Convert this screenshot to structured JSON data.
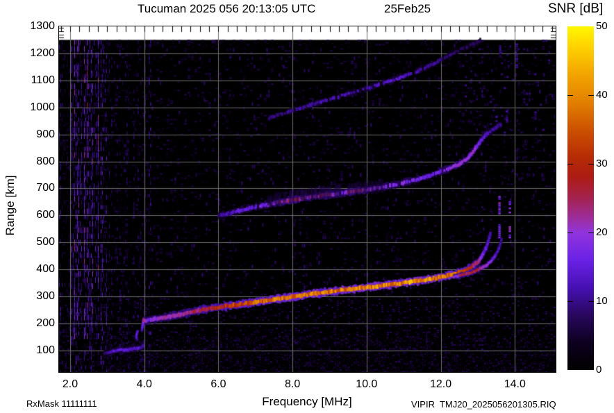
{
  "title": {
    "text": "Tucuman 2025 056 20:13:05 UTC",
    "date": "25Feb25"
  },
  "colorbar": {
    "label": "SNR [dB]",
    "min": 0,
    "max": 50,
    "tick_values": [
      10,
      20,
      30,
      40
    ],
    "tick_labels": [
      0,
      10,
      20,
      30,
      40,
      50
    ]
  },
  "axes": {
    "x": {
      "label": "Frequency [MHz]",
      "min": 1.7,
      "max": 15.1,
      "major_ticks": [
        2,
        4,
        6,
        8,
        10,
        12,
        14
      ],
      "major_tick_labels": [
        "2.0",
        "4.0",
        "6.0",
        "8.0",
        "10.0",
        "12.0",
        "14.0"
      ],
      "minor_tick_step": 0.25
    },
    "y": {
      "label": "Range [km]",
      "min": 20,
      "max": 1300,
      "major_ticks": [
        100,
        200,
        300,
        400,
        500,
        600,
        700,
        800,
        900,
        1000,
        1100,
        1200,
        1300
      ],
      "grid_lines": [
        100,
        200,
        300,
        400,
        500,
        600,
        700,
        800,
        900,
        1000,
        1100,
        1200
      ]
    }
  },
  "footer": {
    "rx_mask": "RxMask 11111111",
    "file": "VIPIR  TMJ20_2025056201305.RIQ"
  },
  "chart_data": {
    "type": "heatmap",
    "title": "Tucuman 2025 056 20:13:05 UTC 25Feb25",
    "xlabel": "Frequency [MHz]",
    "ylabel": "Range [km]",
    "xlim": [
      1.7,
      15.1
    ],
    "ylim": [
      20,
      1300
    ],
    "data_top_km": 1250,
    "grid": true,
    "grid_color": "#6e6e6e",
    "colorbar_label": "SNR [dB]",
    "colorbar_range": [
      0,
      50
    ],
    "colormap_stops": [
      [
        0,
        "#000000"
      ],
      [
        4,
        "#0d001f"
      ],
      [
        8,
        "#28085e"
      ],
      [
        12,
        "#4610b2"
      ],
      [
        16,
        "#6a22e6"
      ],
      [
        20,
        "#9134dc"
      ],
      [
        22,
        "#9c2e9e"
      ],
      [
        25,
        "#a42250"
      ],
      [
        28,
        "#ac1c14"
      ],
      [
        31,
        "#b62c04"
      ],
      [
        35,
        "#cc5200"
      ],
      [
        39,
        "#e28000"
      ],
      [
        43,
        "#f2a400"
      ],
      [
        47,
        "#ffd200"
      ],
      [
        50,
        "#fff800"
      ]
    ],
    "traces": [
      {
        "name": "F-trace-1st-hop-O-mode",
        "width": 5,
        "points": [
          [
            3.94,
            180,
            12
          ],
          [
            3.96,
            196,
            16
          ],
          [
            3.98,
            210,
            22
          ],
          [
            4.15,
            213,
            18
          ],
          [
            4.45,
            220,
            20
          ],
          [
            5.0,
            234,
            22
          ],
          [
            5.5,
            249,
            25
          ],
          [
            6.1,
            262,
            30
          ],
          [
            6.7,
            273,
            34
          ],
          [
            7.2,
            283,
            36
          ],
          [
            7.8,
            295,
            38
          ],
          [
            8.4,
            307,
            38
          ],
          [
            9.2,
            321,
            38
          ],
          [
            10.0,
            334,
            39
          ],
          [
            10.8,
            347,
            40
          ],
          [
            11.7,
            364,
            40
          ],
          [
            12.1,
            374,
            38
          ],
          [
            12.4,
            384,
            36
          ],
          [
            12.65,
            395,
            32
          ],
          [
            12.8,
            407,
            28
          ],
          [
            12.95,
            421,
            24
          ],
          [
            13.05,
            436,
            20
          ],
          [
            13.12,
            452,
            17
          ],
          [
            13.18,
            468,
            15
          ],
          [
            13.24,
            486,
            14
          ],
          [
            13.28,
            503,
            13
          ],
          [
            13.32,
            521,
            12
          ],
          [
            13.35,
            538,
            11
          ]
        ]
      },
      {
        "name": "F-trace-1st-hop-X-mode",
        "width": 3.5,
        "points": [
          [
            12.35,
            372,
            20
          ],
          [
            12.6,
            380,
            24
          ],
          [
            12.85,
            390,
            26
          ],
          [
            13.05,
            402,
            24
          ],
          [
            13.22,
            414,
            20
          ],
          [
            13.34,
            428,
            17
          ],
          [
            13.44,
            445,
            15
          ],
          [
            13.52,
            463,
            13
          ],
          [
            13.58,
            481,
            12
          ],
          [
            13.62,
            499,
            11
          ],
          [
            13.65,
            516,
            10
          ]
        ]
      },
      {
        "name": "F-trace-2nd-hop",
        "width": 4.5,
        "dash": 0.15,
        "points": [
          [
            6.0,
            598,
            10
          ],
          [
            6.4,
            612,
            13
          ],
          [
            6.7,
            622,
            15
          ],
          [
            7.3,
            640,
            17
          ],
          [
            7.75,
            652,
            22
          ],
          [
            8.1,
            660,
            26
          ],
          [
            8.45,
            667,
            20
          ],
          [
            8.9,
            675,
            24
          ],
          [
            9.3,
            682,
            18
          ],
          [
            9.7,
            690,
            23
          ],
          [
            10.1,
            697,
            19
          ],
          [
            10.7,
            712,
            17
          ],
          [
            11.3,
            730,
            17
          ],
          [
            11.7,
            748,
            15
          ],
          [
            12.0,
            762,
            17
          ],
          [
            12.3,
            778,
            19
          ],
          [
            12.55,
            794,
            20
          ],
          [
            12.75,
            815,
            21
          ],
          [
            12.9,
            840,
            19
          ],
          [
            13.0,
            862,
            17
          ],
          [
            13.1,
            880,
            15
          ],
          [
            13.25,
            902,
            13
          ],
          [
            13.45,
            922,
            11
          ],
          [
            13.65,
            940,
            9
          ]
        ]
      },
      {
        "name": "F-trace-2nd-hop-spread",
        "width": 16,
        "halo": true,
        "dash": 0.3,
        "points": [
          [
            7.3,
            655,
            6
          ],
          [
            8.0,
            670,
            7
          ],
          [
            8.7,
            682,
            7
          ],
          [
            9.4,
            694,
            7
          ],
          [
            10.0,
            702,
            6
          ],
          [
            10.5,
            708,
            5
          ]
        ]
      },
      {
        "name": "F-trace-3rd-hop",
        "width": 4,
        "dash": 0.35,
        "points": [
          [
            7.3,
            958,
            9
          ],
          [
            7.9,
            985,
            10
          ],
          [
            8.5,
            1010,
            11
          ],
          [
            9.2,
            1038,
            12
          ],
          [
            9.8,
            1062,
            12
          ],
          [
            10.4,
            1088,
            12
          ],
          [
            10.9,
            1110,
            13
          ],
          [
            11.3,
            1130,
            12
          ],
          [
            11.6,
            1148,
            11
          ],
          [
            11.9,
            1168,
            10
          ],
          [
            12.2,
            1192,
            9
          ],
          [
            12.5,
            1212,
            8
          ],
          [
            12.8,
            1230,
            8
          ],
          [
            13.1,
            1248,
            7
          ]
        ]
      },
      {
        "name": "E-layer-trace",
        "width": 4,
        "points": [
          [
            2.92,
            88,
            8
          ],
          [
            3.1,
            96,
            12
          ],
          [
            3.35,
            101,
            14
          ],
          [
            3.6,
            104,
            14
          ],
          [
            3.8,
            107,
            13
          ],
          [
            3.93,
            112,
            12
          ],
          [
            3.99,
            120,
            9
          ]
        ]
      },
      {
        "name": "F-leading-edge-stratification",
        "width": 3,
        "points": [
          [
            3.82,
            170,
            14
          ],
          [
            3.79,
            158,
            16
          ],
          [
            3.78,
            147,
            14
          ],
          [
            3.82,
            137,
            10
          ]
        ]
      }
    ],
    "echo_columns": [
      {
        "f": 13.58,
        "km": [
          605,
          672
        ],
        "snr": 17
      },
      {
        "f": 13.86,
        "km": [
          608,
          668
        ],
        "snr": 19
      },
      {
        "f": 13.58,
        "km": [
          516,
          568
        ],
        "snr": 15
      },
      {
        "f": 13.86,
        "km": [
          519,
          560
        ],
        "snr": 17
      },
      {
        "f": 13.5,
        "km": [
          938,
          968
        ],
        "snr": 10
      },
      {
        "f": 13.78,
        "km": [
          948,
          988
        ],
        "snr": 9
      },
      {
        "f": 14.05,
        "km": [
          1148,
          1252
        ],
        "snr": 9
      },
      {
        "f": 13.6,
        "km": [
          1190,
          1230
        ],
        "snr": 8
      },
      {
        "f": 14.55,
        "km": [
          960,
          985
        ],
        "snr": 8
      }
    ],
    "noise_bands": [
      {
        "f": [
          1.7,
          15.1
        ],
        "km": [
          20,
          1250
        ],
        "p": 0.13,
        "snr": [
          2,
          7
        ],
        "cell": [
          5,
          3
        ]
      },
      {
        "f": [
          1.7,
          15.1
        ],
        "km": [
          20,
          300
        ],
        "p": 0.2,
        "snr": [
          2,
          8
        ],
        "cell": [
          4,
          3
        ]
      },
      {
        "f": [
          2.9,
          15.1
        ],
        "km": [
          20,
          150
        ],
        "p": 0.3,
        "snr": [
          3,
          9
        ],
        "cell": [
          3,
          2
        ]
      },
      {
        "f": [
          1.7,
          3.05
        ],
        "km": [
          20,
          1250
        ],
        "p": 0.5,
        "snr": [
          3,
          13
        ],
        "cell": [
          2,
          7
        ],
        "striated": true
      },
      {
        "f": [
          2.0,
          2.75
        ],
        "km": [
          140,
          1250
        ],
        "p": 0.45,
        "snr": [
          5,
          17
        ],
        "cell": [
          2,
          9
        ],
        "striated": true
      },
      {
        "f": [
          3.0,
          3.75
        ],
        "km": [
          20,
          1250
        ],
        "p": 0.22,
        "snr": [
          2,
          9
        ],
        "cell": [
          2,
          6
        ],
        "striated": true
      },
      {
        "f": [
          3.75,
          4.2
        ],
        "km": [
          20,
          1250
        ],
        "p": 0.3,
        "snr": [
          3,
          11
        ],
        "cell": [
          2,
          6
        ],
        "striated": true
      },
      {
        "f": [
          4.2,
          15.1
        ],
        "km": [
          300,
          1250
        ],
        "p": 0.05,
        "snr": [
          3,
          9
        ],
        "cell": [
          3,
          6
        ]
      },
      {
        "f": [
          12.5,
          14.9
        ],
        "km": [
          900,
          1250
        ],
        "p": 0.09,
        "snr": [
          4,
          10
        ],
        "cell": [
          4,
          4
        ]
      }
    ],
    "rfi_columns": [
      {
        "f": 6.3,
        "p": 0.16
      },
      {
        "f": 8.05,
        "p": 0.18
      },
      {
        "f": 8.7,
        "p": 0.14
      },
      {
        "f": 10.0,
        "p": 0.16
      },
      {
        "f": 10.85,
        "p": 0.13
      },
      {
        "f": 11.6,
        "p": 0.11
      },
      {
        "f": 12.3,
        "p": 0.14
      },
      {
        "f": 13.1,
        "p": 0.11
      }
    ]
  }
}
